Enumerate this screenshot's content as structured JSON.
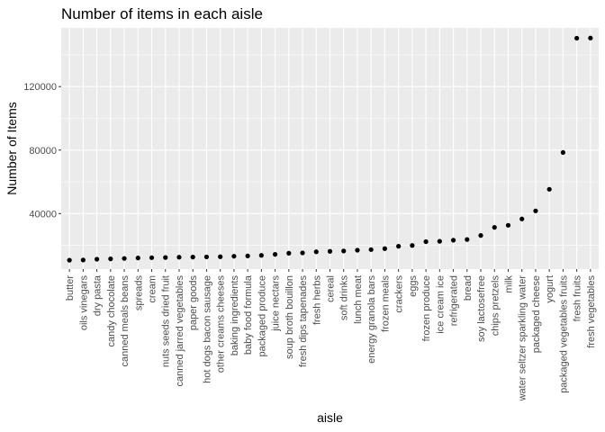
{
  "chart_data": {
    "type": "scatter",
    "title": "Number of items in each aisle",
    "xlabel": "aisle",
    "ylabel": "Number of Items",
    "yticks": [
      40000,
      80000,
      120000
    ],
    "ytick_labels": [
      "40000",
      "80000",
      "120000"
    ],
    "ylim": [
      5000,
      157000
    ],
    "grid": true,
    "colors": {
      "panel": "#ebebeb",
      "grid": "#ffffff",
      "point": "#000000"
    },
    "categories": [
      "butter",
      "oils vinegars",
      "dry pasta",
      "candy chocolate",
      "canned meals beans",
      "spreads",
      "cream",
      "nuts seeds dried fruit",
      "canned jarred vegetables",
      "paper goods",
      "hot dogs bacon sausage",
      "other creams cheeses",
      "baking ingredients",
      "baby food formula",
      "packaged produce",
      "juice nectars",
      "soup broth bouillon",
      "fresh dips tapenades",
      "fresh herbs",
      "cereal",
      "soft drinks",
      "lunch meat",
      "energy granola bars",
      "frozen meals",
      "crackers",
      "eggs",
      "frozen produce",
      "ice cream ice",
      "refrigerated",
      "bread",
      "soy lactosefree",
      "chips pretzels",
      "milk",
      "water seltzer sparkling water",
      "packaged cheese",
      "yogurt",
      "packaged vegetables fruits",
      "fresh fruits",
      "fresh vegetables"
    ],
    "values": [
      10600,
      10750,
      11250,
      11450,
      11700,
      12000,
      12200,
      12300,
      12500,
      12600,
      12700,
      12800,
      13100,
      13300,
      13650,
      14300,
      15000,
      15200,
      15900,
      16200,
      16400,
      16900,
      17300,
      17900,
      19400,
      19900,
      22300,
      22500,
      23200,
      23650,
      26200,
      31300,
      32600,
      36600,
      41700,
      55300,
      78500,
      150500,
      150600
    ]
  }
}
